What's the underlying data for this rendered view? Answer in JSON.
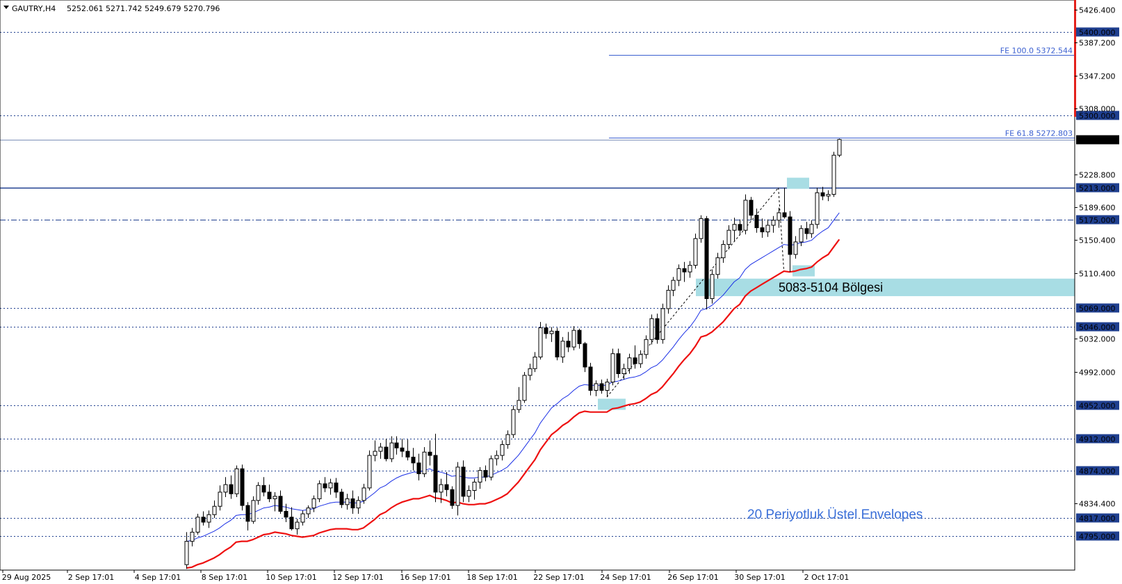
{
  "header": {
    "symbol": "GAUTRY,H4",
    "ohlc": "5252.061 5271.742 5249.679 5270.796"
  },
  "colors": {
    "grid_line": "#1f3f8f",
    "fib": "#3a5fd0",
    "ema": "#1a2fe6",
    "envelope": "#ee1111",
    "zone": "#a8dde4",
    "candle": "#000000",
    "red_bar": "#e3211b",
    "annotation": "#3a6fd8"
  },
  "chart_data": {
    "type": "candlestick",
    "y_axis": {
      "ylim": [
        4780,
        5440
      ],
      "ticks": [
        5426.4,
        5387.2,
        5347.2,
        5308.0,
        5228.8,
        5189.6,
        5150.4,
        5110.4,
        5032.0,
        4992.0,
        4834.4
      ],
      "tick_labels": [
        "5426.400",
        "5387.200",
        "5347.200",
        "5308.000",
        "5228.800",
        "5189.600",
        "5150.400",
        "5110.400",
        "5032.000",
        "4992.000",
        "4834.400"
      ]
    },
    "x_axis": {
      "tick_labels": [
        "29 Aug 2025",
        "2 Sep 17:01",
        "4 Sep 17:01",
        "8 Sep 17:01",
        "10 Sep 17:01",
        "12 Sep 17:01",
        "16 Sep 17:01",
        "18 Sep 17:01",
        "22 Sep 17:01",
        "24 Sep 17:01",
        "26 Sep 17:01",
        "30 Sep 17:01",
        "2 Oct 17:01"
      ]
    },
    "horizontal_levels": [
      {
        "value": 5400.0,
        "label": "5400.000",
        "style": "dotted",
        "highlight": true
      },
      {
        "value": 5300.0,
        "label": "5300.000",
        "style": "dotted",
        "highlight": true
      },
      {
        "value": 5213.0,
        "label": "5213.000",
        "style": "solid",
        "highlight": true
      },
      {
        "value": 5175.0,
        "label": "5175.000",
        "style": "dashdot",
        "highlight": true
      },
      {
        "value": 5069.0,
        "label": "5069.000",
        "style": "dotted",
        "highlight": true
      },
      {
        "value": 5046.0,
        "label": "5046.000",
        "style": "dotted",
        "highlight": true
      },
      {
        "value": 4952.0,
        "label": "4952.000",
        "style": "dotted",
        "highlight": true
      },
      {
        "value": 4912.0,
        "label": "4912.000",
        "style": "dotted",
        "highlight": true
      },
      {
        "value": 4874.0,
        "label": "4874.000",
        "style": "dotted",
        "highlight": true
      },
      {
        "value": 4817.0,
        "label": "4817.000",
        "style": "dotted",
        "highlight": true
      },
      {
        "value": 4795.0,
        "label": "4795.000",
        "style": "dotted",
        "highlight": true
      }
    ],
    "current_price": {
      "value": 5270.796,
      "label": "5270.796"
    },
    "fib_levels": [
      {
        "value": 5372.544,
        "label": "FE 100.0 5372.544"
      },
      {
        "value": 5272.803,
        "label": "FE 61.8 5272.803"
      }
    ],
    "zone": {
      "low": 5083,
      "high": 5104,
      "label": "5083-5104 Bölgesi"
    },
    "annotation": "20 Periyotluk Üstel Envelopes",
    "candles": [
      [
        4761,
        4800,
        4756,
        4789
      ],
      [
        4789,
        4805,
        4783,
        4800
      ],
      [
        4800,
        4822,
        4797,
        4818
      ],
      [
        4818,
        4825,
        4808,
        4812
      ],
      [
        4812,
        4826,
        4805,
        4821
      ],
      [
        4821,
        4838,
        4817,
        4831
      ],
      [
        4831,
        4856,
        4826,
        4848
      ],
      [
        4848,
        4866,
        4842,
        4857
      ],
      [
        4857,
        4868,
        4840,
        4846
      ],
      [
        4846,
        4880,
        4842,
        4876
      ],
      [
        4876,
        4881,
        4826,
        4832
      ],
      [
        4832,
        4836,
        4802,
        4813
      ],
      [
        4813,
        4843,
        4810,
        4838
      ],
      [
        4838,
        4860,
        4833,
        4856
      ],
      [
        4856,
        4866,
        4843,
        4848
      ],
      [
        4848,
        4857,
        4836,
        4840
      ],
      [
        4840,
        4848,
        4825,
        4843
      ],
      [
        4843,
        4850,
        4822,
        4825
      ],
      [
        4825,
        4834,
        4812,
        4818
      ],
      [
        4818,
        4830,
        4802,
        4804
      ],
      [
        4804,
        4816,
        4797,
        4812
      ],
      [
        4812,
        4826,
        4808,
        4822
      ],
      [
        4822,
        4832,
        4817,
        4829
      ],
      [
        4829,
        4844,
        4824,
        4840
      ],
      [
        4840,
        4862,
        4836,
        4858
      ],
      [
        4858,
        4866,
        4848,
        4853
      ],
      [
        4853,
        4864,
        4845,
        4859
      ],
      [
        4859,
        4865,
        4841,
        4848
      ],
      [
        4848,
        4852,
        4829,
        4833
      ],
      [
        4833,
        4846,
        4827,
        4840
      ],
      [
        4840,
        4850,
        4822,
        4829
      ],
      [
        4829,
        4843,
        4822,
        4838
      ],
      [
        4838,
        4858,
        4834,
        4853
      ],
      [
        4853,
        4898,
        4850,
        4892
      ],
      [
        4892,
        4910,
        4885,
        4897
      ],
      [
        4897,
        4907,
        4888,
        4902
      ],
      [
        4902,
        4912,
        4885,
        4888
      ],
      [
        4888,
        4915,
        4884,
        4907
      ],
      [
        4907,
        4915,
        4893,
        4901
      ],
      [
        4901,
        4912,
        4890,
        4897
      ],
      [
        4897,
        4911,
        4886,
        4890
      ],
      [
        4890,
        4901,
        4874,
        4883
      ],
      [
        4883,
        4894,
        4862,
        4870
      ],
      [
        4870,
        4902,
        4866,
        4896
      ],
      [
        4896,
        4910,
        4880,
        4892
      ],
      [
        4892,
        4918,
        4836,
        4848
      ],
      [
        4848,
        4864,
        4835,
        4857
      ],
      [
        4857,
        4872,
        4843,
        4851
      ],
      [
        4851,
        4855,
        4828,
        4832
      ],
      [
        4832,
        4884,
        4820,
        4878
      ],
      [
        4878,
        4886,
        4836,
        4843
      ],
      [
        4843,
        4856,
        4836,
        4850
      ],
      [
        4850,
        4864,
        4839,
        4860
      ],
      [
        4860,
        4878,
        4852,
        4874
      ],
      [
        4874,
        4880,
        4861,
        4866
      ],
      [
        4866,
        4892,
        4862,
        4888
      ],
      [
        4888,
        4898,
        4880,
        4892
      ],
      [
        4892,
        4910,
        4886,
        4905
      ],
      [
        4905,
        4922,
        4900,
        4917
      ],
      [
        4917,
        4952,
        4913,
        4947
      ],
      [
        4947,
        4974,
        4943,
        4958
      ],
      [
        4958,
        4992,
        4955,
        4988
      ],
      [
        4988,
        5002,
        4982,
        4996
      ],
      [
        4996,
        5016,
        4992,
        5010
      ],
      [
        5010,
        5052,
        5007,
        5045
      ],
      [
        5045,
        5050,
        5032,
        5038
      ],
      [
        5038,
        5046,
        5028,
        5041
      ],
      [
        5041,
        5045,
        5006,
        5010
      ],
      [
        5010,
        5034,
        5003,
        5029
      ],
      [
        5029,
        5040,
        5016,
        5022
      ],
      [
        5022,
        5047,
        5018,
        5042
      ],
      [
        5042,
        5044,
        5020,
        5026
      ],
      [
        5026,
        5028,
        4992,
        4998
      ],
      [
        4998,
        5003,
        4964,
        4970
      ],
      [
        4970,
        4982,
        4963,
        4978
      ],
      [
        4978,
        4983,
        4966,
        4970
      ],
      [
        4970,
        4984,
        4962,
        4980
      ],
      [
        4980,
        5020,
        4976,
        5014
      ],
      [
        5014,
        5020,
        4985,
        4990
      ],
      [
        4990,
        5002,
        4983,
        4996
      ],
      [
        4996,
        5014,
        4990,
        5009
      ],
      [
        5009,
        5024,
        4996,
        5002
      ],
      [
        5002,
        5018,
        4997,
        5013
      ],
      [
        5013,
        5036,
        5008,
        5031
      ],
      [
        5031,
        5061,
        5025,
        5056
      ],
      [
        5056,
        5062,
        5026,
        5031
      ],
      [
        5031,
        5074,
        5026,
        5068
      ],
      [
        5068,
        5096,
        5062,
        5090
      ],
      [
        5090,
        5106,
        5083,
        5102
      ],
      [
        5102,
        5121,
        5095,
        5116
      ],
      [
        5116,
        5124,
        5100,
        5112
      ],
      [
        5112,
        5125,
        5105,
        5120
      ],
      [
        5120,
        5158,
        5116,
        5152
      ],
      [
        5152,
        5180,
        5147,
        5176
      ],
      [
        5176,
        5179,
        5067,
        5080
      ],
      [
        5080,
        5115,
        5074,
        5109
      ],
      [
        5109,
        5135,
        5104,
        5129
      ],
      [
        5129,
        5150,
        5123,
        5145
      ],
      [
        5145,
        5168,
        5139,
        5162
      ],
      [
        5162,
        5177,
        5149,
        5169
      ],
      [
        5169,
        5175,
        5156,
        5162
      ],
      [
        5162,
        5205,
        5157,
        5198
      ],
      [
        5198,
        5202,
        5174,
        5180
      ],
      [
        5180,
        5188,
        5159,
        5165
      ],
      [
        5165,
        5176,
        5153,
        5160
      ],
      [
        5160,
        5175,
        5154,
        5168
      ],
      [
        5168,
        5179,
        5159,
        5174
      ],
      [
        5174,
        5189,
        5165,
        5183
      ],
      [
        5183,
        5213,
        5176,
        5178
      ],
      [
        5178,
        5185,
        5112,
        5133
      ],
      [
        5133,
        5155,
        5128,
        5148
      ],
      [
        5148,
        5168,
        5143,
        5164
      ],
      [
        5164,
        5172,
        5151,
        5158
      ],
      [
        5158,
        5174,
        5153,
        5169
      ],
      [
        5169,
        5213,
        5164,
        5207
      ],
      [
        5207,
        5214,
        5198,
        5203
      ],
      [
        5203,
        5210,
        5197,
        5205
      ],
      [
        5205,
        5256,
        5202,
        5252
      ],
      [
        5252,
        5271.742,
        5249.679,
        5270.796
      ]
    ],
    "ema": [
      4789,
      4790,
      4793,
      4795,
      4798,
      4801,
      4805,
      4810,
      4814,
      4820,
      4821,
      4821,
      4823,
      4826,
      4829,
      4830,
      4832,
      4831,
      4830,
      4828,
      4827,
      4826,
      4827,
      4828,
      4831,
      4833,
      4835,
      4836,
      4836,
      4836,
      4835,
      4835,
      4837,
      4842,
      4847,
      4853,
      4856,
      4861,
      4865,
      4868,
      4870,
      4872,
      4872,
      4874,
      4876,
      4873,
      4872,
      4870,
      4867,
      4868,
      4866,
      4865,
      4865,
      4866,
      4866,
      4868,
      4871,
      4874,
      4878,
      4885,
      4892,
      4901,
      4910,
      4919,
      4931,
      4940,
      4949,
      4954,
      4960,
      4964,
      4970,
      4975,
      4977,
      4976,
      4976,
      4976,
      4976,
      4980,
      4981,
      4983,
      4985,
      4986,
      4988,
      4992,
      4997,
      5000,
      5006,
      5014,
      5022,
      5031,
      5039,
      5046,
      5055,
      5066,
      5068,
      5072,
      5078,
      5084,
      5092,
      5100,
      5105,
      5115,
      5121,
      5125,
      5129,
      5133,
      5137,
      5141,
      5145,
      5144,
      5145,
      5147,
      5148,
      5150,
      5156,
      5161,
      5165,
      5174,
      5183
    ]
  }
}
